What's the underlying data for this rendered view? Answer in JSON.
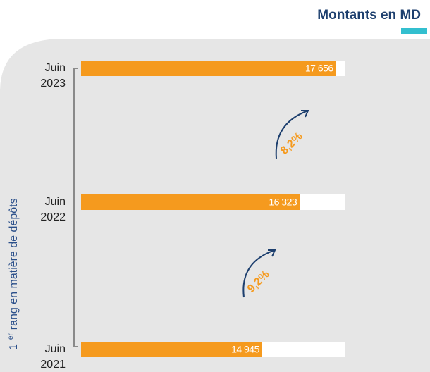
{
  "chart_data": {
    "type": "hbar",
    "title": "Montants en MD",
    "y_label": {
      "number": "1",
      "suffix": "er",
      "text": "rang en matière de dépôts"
    },
    "categories": [
      [
        "Juin",
        "2023"
      ],
      [
        "Juin",
        "2022"
      ],
      [
        "Juin",
        "2021"
      ]
    ],
    "values": [
      17656,
      16323,
      14945
    ],
    "value_labels": [
      "17 656",
      "16 323",
      "14 945"
    ],
    "color": "#f59a1e",
    "xlim": [
      8300,
      18000
    ],
    "annotations": [
      "8,2%",
      "9,2%"
    ]
  }
}
